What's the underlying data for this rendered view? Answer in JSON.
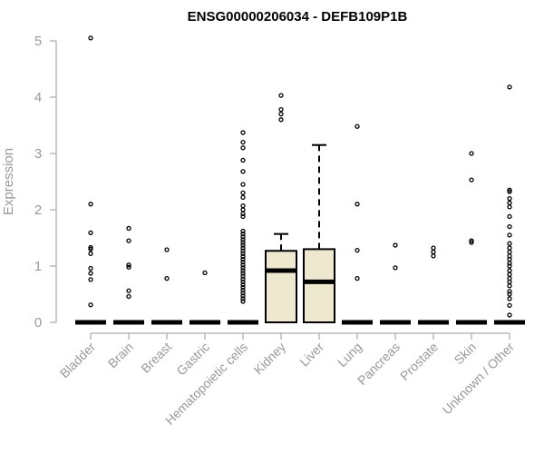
{
  "chart_data": {
    "type": "boxplot",
    "title": "ENSG00000206034 - DEFB109P1B",
    "xlabel": "",
    "ylabel": "Expression",
    "ylim": [
      0,
      5
    ],
    "yticks": [
      0,
      1,
      2,
      3,
      4,
      5
    ],
    "categories": [
      "Bladder",
      "Brain",
      "Breast",
      "Gastric",
      "Hematopoietic cells",
      "Kidney",
      "Liver",
      "Lung",
      "Pancreas",
      "Prostate",
      "Skin",
      "Unknown / Other"
    ],
    "boxes": [
      {
        "q1": 0,
        "median": 0,
        "q3": 0,
        "whisker_low": 0,
        "whisker_high": 0,
        "outliers": [
          0.31,
          0.76,
          0.87,
          0.96,
          1.22,
          1.3,
          1.33,
          1.59,
          2.1,
          5.05
        ]
      },
      {
        "q1": 0,
        "median": 0,
        "q3": 0,
        "whisker_low": 0,
        "whisker_high": 0,
        "outliers": [
          0.46,
          0.56,
          0.98,
          1.02,
          1.45,
          1.67
        ]
      },
      {
        "q1": 0,
        "median": 0,
        "q3": 0,
        "whisker_low": 0,
        "whisker_high": 0,
        "outliers": [
          0.78,
          1.29
        ]
      },
      {
        "q1": 0,
        "median": 0,
        "q3": 0,
        "whisker_low": 0,
        "whisker_high": 0,
        "outliers": [
          0.88
        ]
      },
      {
        "q1": 0,
        "median": 0,
        "q3": 0,
        "whisker_low": 0,
        "whisker_high": 0,
        "outliers": [
          0.37,
          0.42,
          0.47,
          0.52,
          0.57,
          0.62,
          0.67,
          0.72,
          0.77,
          0.82,
          0.87,
          0.92,
          0.97,
          1.02,
          1.07,
          1.12,
          1.17,
          1.22,
          1.27,
          1.32,
          1.37,
          1.42,
          1.47,
          1.52,
          1.57,
          1.62,
          1.88,
          1.93,
          2.0,
          2.07,
          2.22,
          2.3,
          2.45,
          2.68,
          2.88,
          3.1,
          3.2,
          3.37
        ]
      },
      {
        "q1": 0,
        "median": 0.92,
        "q3": 1.27,
        "whisker_low": 0,
        "whisker_high": 1.57,
        "outliers": [
          3.6,
          3.7,
          3.78,
          4.03
        ]
      },
      {
        "q1": 0,
        "median": 0.72,
        "q3": 1.3,
        "whisker_low": 0,
        "whisker_high": 3.15,
        "outliers": []
      },
      {
        "q1": 0,
        "median": 0,
        "q3": 0,
        "whisker_low": 0,
        "whisker_high": 0,
        "outliers": [
          0.78,
          1.28,
          2.1,
          3.48
        ]
      },
      {
        "q1": 0,
        "median": 0,
        "q3": 0,
        "whisker_low": 0,
        "whisker_high": 0,
        "outliers": [
          0.97,
          1.37
        ]
      },
      {
        "q1": 0,
        "median": 0,
        "q3": 0,
        "whisker_low": 0,
        "whisker_high": 0,
        "outliers": [
          1.18,
          1.25,
          1.32
        ]
      },
      {
        "q1": 0,
        "median": 0,
        "q3": 0,
        "whisker_low": 0,
        "whisker_high": 0,
        "outliers": [
          1.42,
          1.45,
          2.53,
          3.0
        ]
      },
      {
        "q1": 0,
        "median": 0,
        "q3": 0,
        "whisker_low": 0,
        "whisker_high": 0,
        "outliers": [
          0.13,
          0.3,
          0.42,
          0.5,
          0.55,
          0.65,
          0.72,
          0.78,
          0.85,
          0.92,
          1.0,
          1.05,
          1.12,
          1.18,
          1.25,
          1.32,
          1.4,
          1.55,
          1.7,
          1.88,
          2.05,
          2.12,
          2.2,
          2.32,
          2.35,
          4.18
        ]
      }
    ],
    "box_fill": "#efe8d0",
    "box_stroke": "#000000",
    "axis_color": "#999999"
  }
}
